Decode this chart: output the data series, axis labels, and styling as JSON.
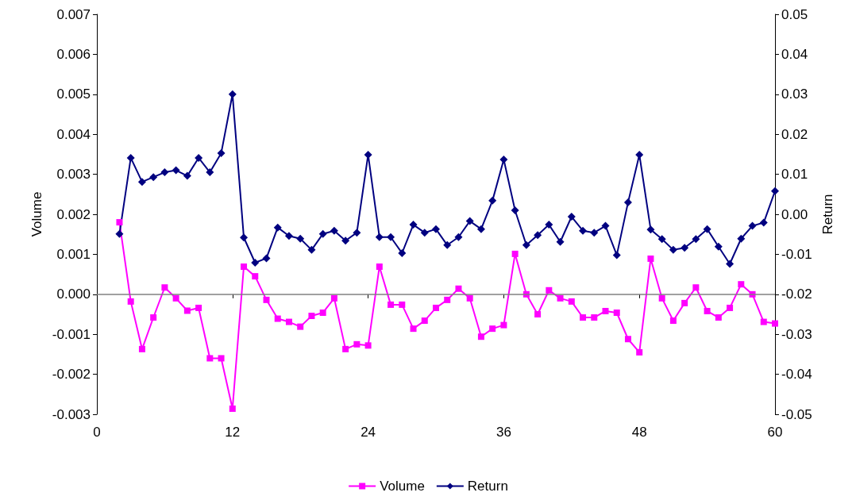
{
  "chart_data": {
    "type": "line",
    "xlabel": null,
    "ylabel": "Volume",
    "y2label": "Return",
    "x": [
      2,
      3,
      4,
      5,
      6,
      7,
      8,
      9,
      10,
      11,
      12,
      13,
      14,
      15,
      16,
      17,
      18,
      19,
      20,
      21,
      22,
      23,
      24,
      25,
      26,
      27,
      28,
      29,
      30,
      31,
      32,
      33,
      34,
      35,
      36,
      37,
      38,
      39,
      40,
      41,
      42,
      43,
      44,
      45,
      46,
      47,
      48,
      49,
      50,
      51,
      52,
      53,
      54,
      55,
      56,
      57,
      58,
      59,
      60
    ],
    "series": [
      {
        "name": "Volume",
        "color": "#ff00ff",
        "marker": "square",
        "values": [
          0.0018,
          -0.00018,
          -0.00137,
          -0.00058,
          0.00017,
          -0.0001,
          -0.00041,
          -0.00034,
          -0.0016,
          -0.0016,
          -0.00286,
          0.00069,
          0.00045,
          -0.00014,
          -0.00061,
          -0.00069,
          -0.00081,
          -0.00054,
          -0.00046,
          -0.0001,
          -0.00137,
          -0.00125,
          -0.00128,
          0.00069,
          -0.00026,
          -0.00026,
          -0.00086,
          -0.00066,
          -0.00034,
          -0.00014,
          0.00014,
          -0.0001,
          -0.00106,
          -0.00086,
          -0.00077,
          0.00101,
          0,
          -0.0005,
          0.0001,
          -0.0001,
          -0.00018,
          -0.00058,
          -0.00058,
          -0.00042,
          -0.00046,
          -0.00112,
          -0.00145,
          0.00089,
          -0.0001,
          -0.00066,
          -0.00022,
          0.00017,
          -0.00042,
          -0.00058,
          -0.00034,
          0.00025,
          0,
          -0.00069,
          -0.00073
        ]
      },
      {
        "name": "Return",
        "color": "#000080",
        "marker": "diamond",
        "axis": "y2",
        "values": [
          -0.0049,
          0.0141,
          0.0081,
          0.0093,
          0.0105,
          0.011,
          0.0096,
          0.0141,
          0.0105,
          0.0153,
          0.03,
          -0.0058,
          -0.0121,
          -0.011,
          -0.0033,
          -0.0054,
          -0.0061,
          -0.0089,
          -0.0049,
          -0.0041,
          -0.0066,
          -0.0046,
          0.0149,
          -0.0057,
          -0.0057,
          -0.0097,
          -0.0026,
          -0.0046,
          -0.0037,
          -0.0077,
          -0.0057,
          -0.0017,
          -0.0037,
          0.0034,
          0.0137,
          0.001,
          -0.0077,
          -0.0052,
          -0.0026,
          -0.0069,
          -0.0006,
          -0.0041,
          -0.0046,
          -0.0029,
          -0.0102,
          0.003,
          0.0149,
          -0.0038,
          -0.0062,
          -0.0089,
          -0.0084,
          -0.0062,
          -0.0037,
          -0.0081,
          -0.0124,
          -0.0061,
          -0.0029,
          -0.0021,
          0.0058
        ]
      }
    ],
    "xlim": [
      0,
      60
    ],
    "xticks": [
      0,
      12,
      24,
      36,
      48,
      60
    ],
    "ylim": [
      -0.003,
      0.007
    ],
    "yticks": [
      -0.003,
      -0.002,
      -0.001,
      {
        "value": 0,
        "label": "0.000"
      },
      0.001,
      0.002,
      0.003,
      0.004,
      0.005,
      0.006,
      0.007
    ],
    "y2lim": [
      -0.05,
      0.05
    ],
    "y2ticks": [
      -0.05,
      -0.04,
      -0.03,
      -0.02,
      -0.01,
      {
        "value": 0,
        "label": "0.00"
      },
      0.01,
      0.02,
      0.03,
      0.04,
      0.05
    ],
    "ref_lines": [
      {
        "axis": "y",
        "value": 0,
        "color": "#808080"
      }
    ],
    "grid": false,
    "legend": "bottom",
    "line_style": "solid"
  }
}
